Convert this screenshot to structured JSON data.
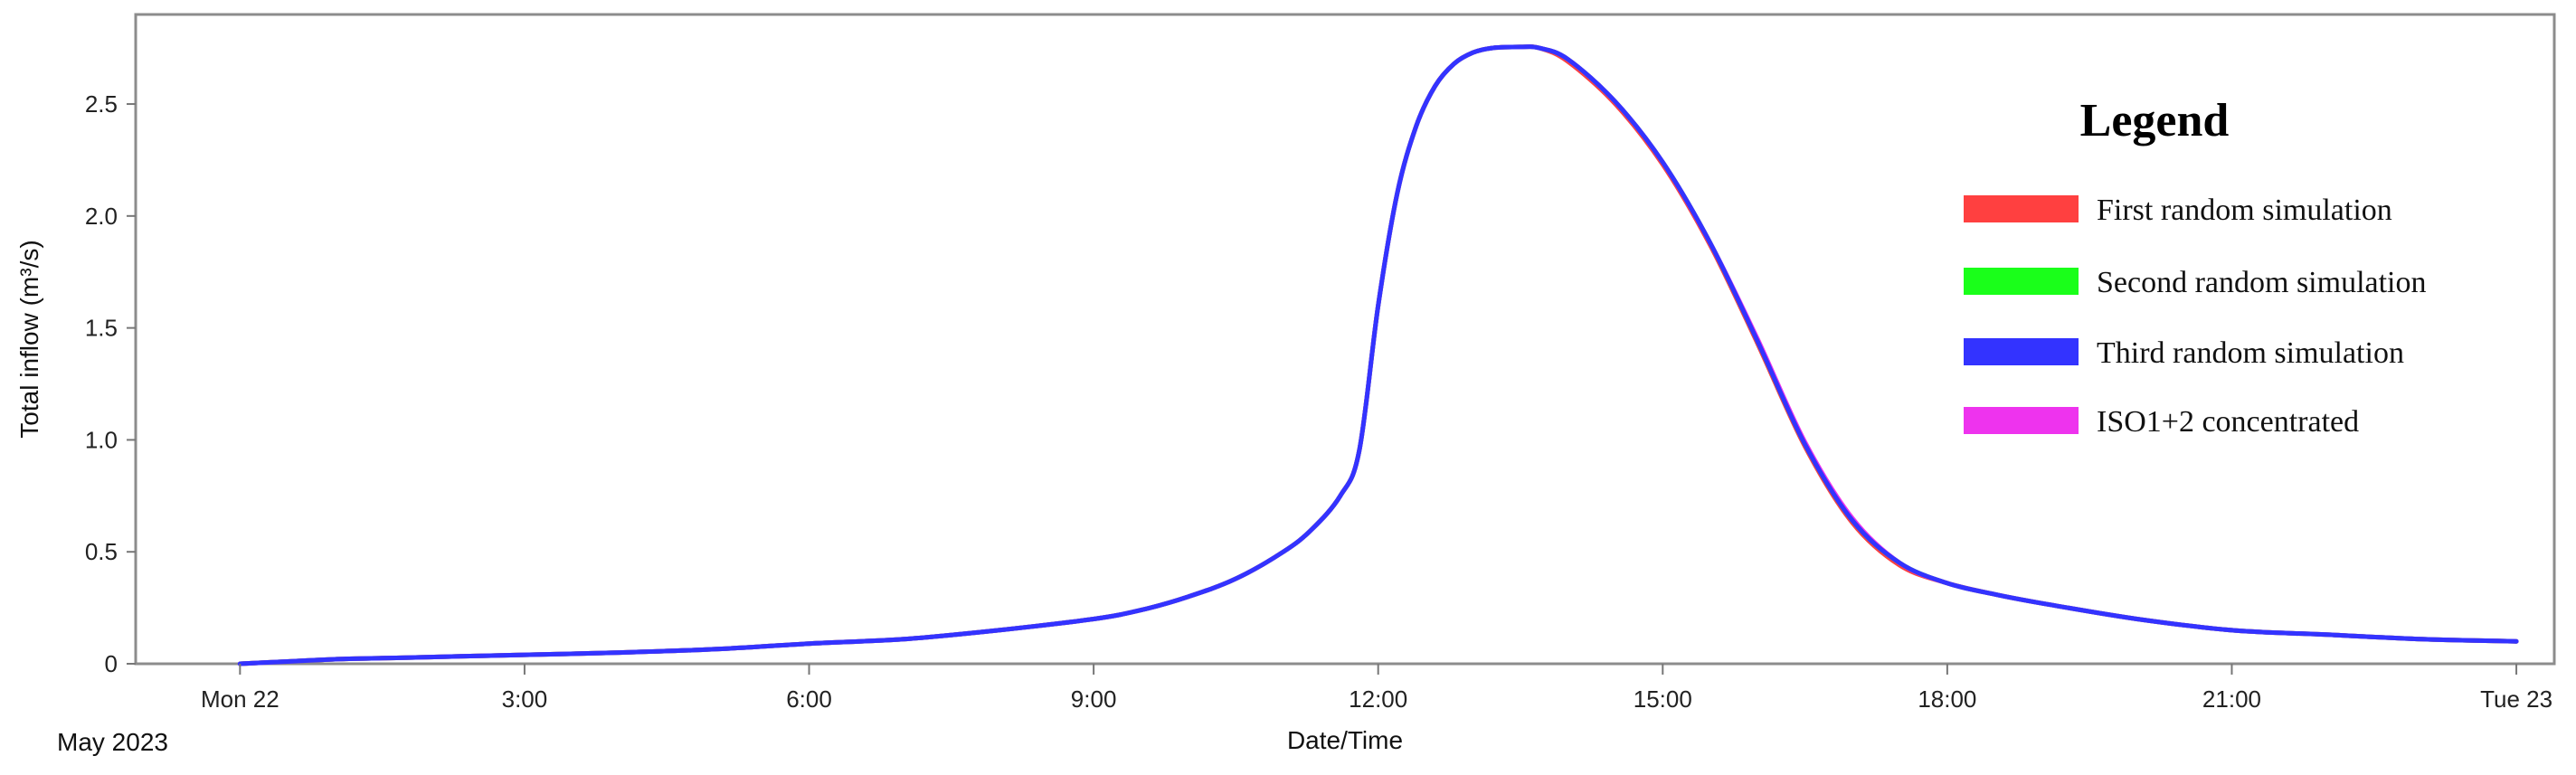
{
  "chart_data": {
    "type": "line",
    "xlabel": "Date/Time",
    "ylabel": "Total inflow (m³/s)",
    "date_caption": "May 2023",
    "x_unit": "hour",
    "xlim": [
      -1.1,
      24.4
    ],
    "ylim": [
      0,
      2.9
    ],
    "x_ticks": [
      {
        "x": 0,
        "label": "Mon 22"
      },
      {
        "x": 3,
        "label": "3:00"
      },
      {
        "x": 6,
        "label": "6:00"
      },
      {
        "x": 9,
        "label": "9:00"
      },
      {
        "x": 12,
        "label": "12:00"
      },
      {
        "x": 15,
        "label": "15:00"
      },
      {
        "x": 18,
        "label": "18:00"
      },
      {
        "x": 21,
        "label": "21:00"
      },
      {
        "x": 24,
        "label": "Tue 23"
      }
    ],
    "y_ticks": [
      {
        "y": 0,
        "label": "0"
      },
      {
        "y": 0.5,
        "label": "0.5"
      },
      {
        "y": 1.0,
        "label": "1.0"
      },
      {
        "y": 1.5,
        "label": "1.5"
      },
      {
        "y": 2.0,
        "label": "2.0"
      },
      {
        "y": 2.5,
        "label": "2.5"
      }
    ],
    "grid": false,
    "legend": {
      "title": "Legend",
      "placement": "top-right",
      "entries": [
        {
          "label": "First random simulation",
          "color": "#ff4040"
        },
        {
          "label": "Second random simulation",
          "color": "#1aff1a"
        },
        {
          "label": "Third random simulation",
          "color": "#3333ff"
        },
        {
          "label": "ISO1+2 concentrated",
          "color": "#ee33ee"
        }
      ]
    },
    "series": [
      {
        "name": "First random simulation",
        "color": "#ff4040",
        "x": [
          0,
          0.5,
          1,
          1.5,
          2,
          3,
          4,
          5,
          6,
          7,
          8,
          9,
          9.5,
          10,
          10.5,
          11,
          11.3,
          11.6,
          11.8,
          12.0,
          12.2,
          12.4,
          12.6,
          12.8,
          13.0,
          13.2,
          13.5,
          13.7,
          14.0,
          14.5,
          15.0,
          15.5,
          16.0,
          16.5,
          17.0,
          17.5,
          18.0,
          18.5,
          19,
          20,
          21,
          22,
          23,
          24
        ],
        "values": [
          0,
          0.01,
          0.02,
          0.025,
          0.03,
          0.04,
          0.05,
          0.065,
          0.09,
          0.11,
          0.15,
          0.2,
          0.24,
          0.3,
          0.38,
          0.5,
          0.6,
          0.75,
          0.95,
          1.6,
          2.1,
          2.4,
          2.58,
          2.68,
          2.73,
          2.75,
          2.755,
          2.75,
          2.69,
          2.5,
          2.23,
          1.87,
          1.43,
          0.97,
          0.63,
          0.44,
          0.36,
          0.31,
          0.27,
          0.2,
          0.15,
          0.13,
          0.11,
          0.1
        ]
      },
      {
        "name": "Second random simulation",
        "color": "#1aff1a",
        "x": [
          0,
          0.5,
          1,
          1.5,
          2,
          3,
          4,
          5,
          6,
          7,
          8,
          9,
          9.5,
          10,
          10.5,
          11,
          11.3,
          11.6,
          11.8,
          12.0,
          12.2,
          12.4,
          12.6,
          12.8,
          13.0,
          13.2,
          13.5,
          13.7,
          14.0,
          14.5,
          15.0,
          15.5,
          16.0,
          16.5,
          17.0,
          17.5,
          18.0,
          18.5,
          19,
          20,
          21,
          22,
          23,
          24
        ],
        "values": [
          0,
          0.01,
          0.02,
          0.025,
          0.03,
          0.04,
          0.05,
          0.065,
          0.09,
          0.11,
          0.15,
          0.2,
          0.24,
          0.3,
          0.38,
          0.5,
          0.6,
          0.75,
          0.95,
          1.6,
          2.1,
          2.4,
          2.58,
          2.68,
          2.73,
          2.75,
          2.755,
          2.75,
          2.7,
          2.51,
          2.24,
          1.88,
          1.44,
          0.98,
          0.64,
          0.45,
          0.36,
          0.31,
          0.27,
          0.2,
          0.15,
          0.13,
          0.11,
          0.1
        ]
      },
      {
        "name": "ISO1+2 concentrated",
        "color": "#ee33ee",
        "x": [
          0,
          0.5,
          1,
          1.5,
          2,
          3,
          4,
          5,
          6,
          7,
          8,
          9,
          9.5,
          10,
          10.5,
          11,
          11.3,
          11.6,
          11.8,
          12.0,
          12.2,
          12.4,
          12.6,
          12.8,
          13.0,
          13.2,
          13.5,
          13.7,
          14.0,
          14.5,
          15.0,
          15.5,
          16.0,
          16.5,
          17.0,
          17.5,
          18.0,
          18.5,
          19,
          20,
          21,
          22,
          23,
          24
        ],
        "values": [
          0,
          0.01,
          0.02,
          0.025,
          0.03,
          0.04,
          0.05,
          0.065,
          0.09,
          0.11,
          0.15,
          0.2,
          0.24,
          0.3,
          0.38,
          0.5,
          0.6,
          0.75,
          0.95,
          1.6,
          2.1,
          2.4,
          2.58,
          2.68,
          2.73,
          2.75,
          2.755,
          2.75,
          2.7,
          2.51,
          2.24,
          1.88,
          1.45,
          0.99,
          0.65,
          0.45,
          0.36,
          0.31,
          0.27,
          0.2,
          0.15,
          0.13,
          0.11,
          0.1
        ]
      },
      {
        "name": "Third random simulation",
        "color": "#3333ff",
        "x": [
          0,
          0.5,
          1,
          1.5,
          2,
          3,
          4,
          5,
          6,
          7,
          8,
          9,
          9.5,
          10,
          10.5,
          11,
          11.3,
          11.6,
          11.8,
          12.0,
          12.2,
          12.4,
          12.6,
          12.8,
          13.0,
          13.2,
          13.5,
          13.7,
          14.0,
          14.5,
          15.0,
          15.5,
          16.0,
          16.5,
          17.0,
          17.5,
          18.0,
          18.5,
          19,
          20,
          21,
          22,
          23,
          24
        ],
        "values": [
          0,
          0.01,
          0.02,
          0.025,
          0.03,
          0.04,
          0.05,
          0.065,
          0.09,
          0.11,
          0.15,
          0.2,
          0.24,
          0.3,
          0.38,
          0.5,
          0.6,
          0.75,
          0.95,
          1.6,
          2.1,
          2.4,
          2.58,
          2.68,
          2.73,
          2.75,
          2.755,
          2.75,
          2.7,
          2.51,
          2.24,
          1.88,
          1.44,
          0.98,
          0.64,
          0.45,
          0.36,
          0.31,
          0.27,
          0.2,
          0.15,
          0.13,
          0.11,
          0.1
        ]
      }
    ]
  }
}
